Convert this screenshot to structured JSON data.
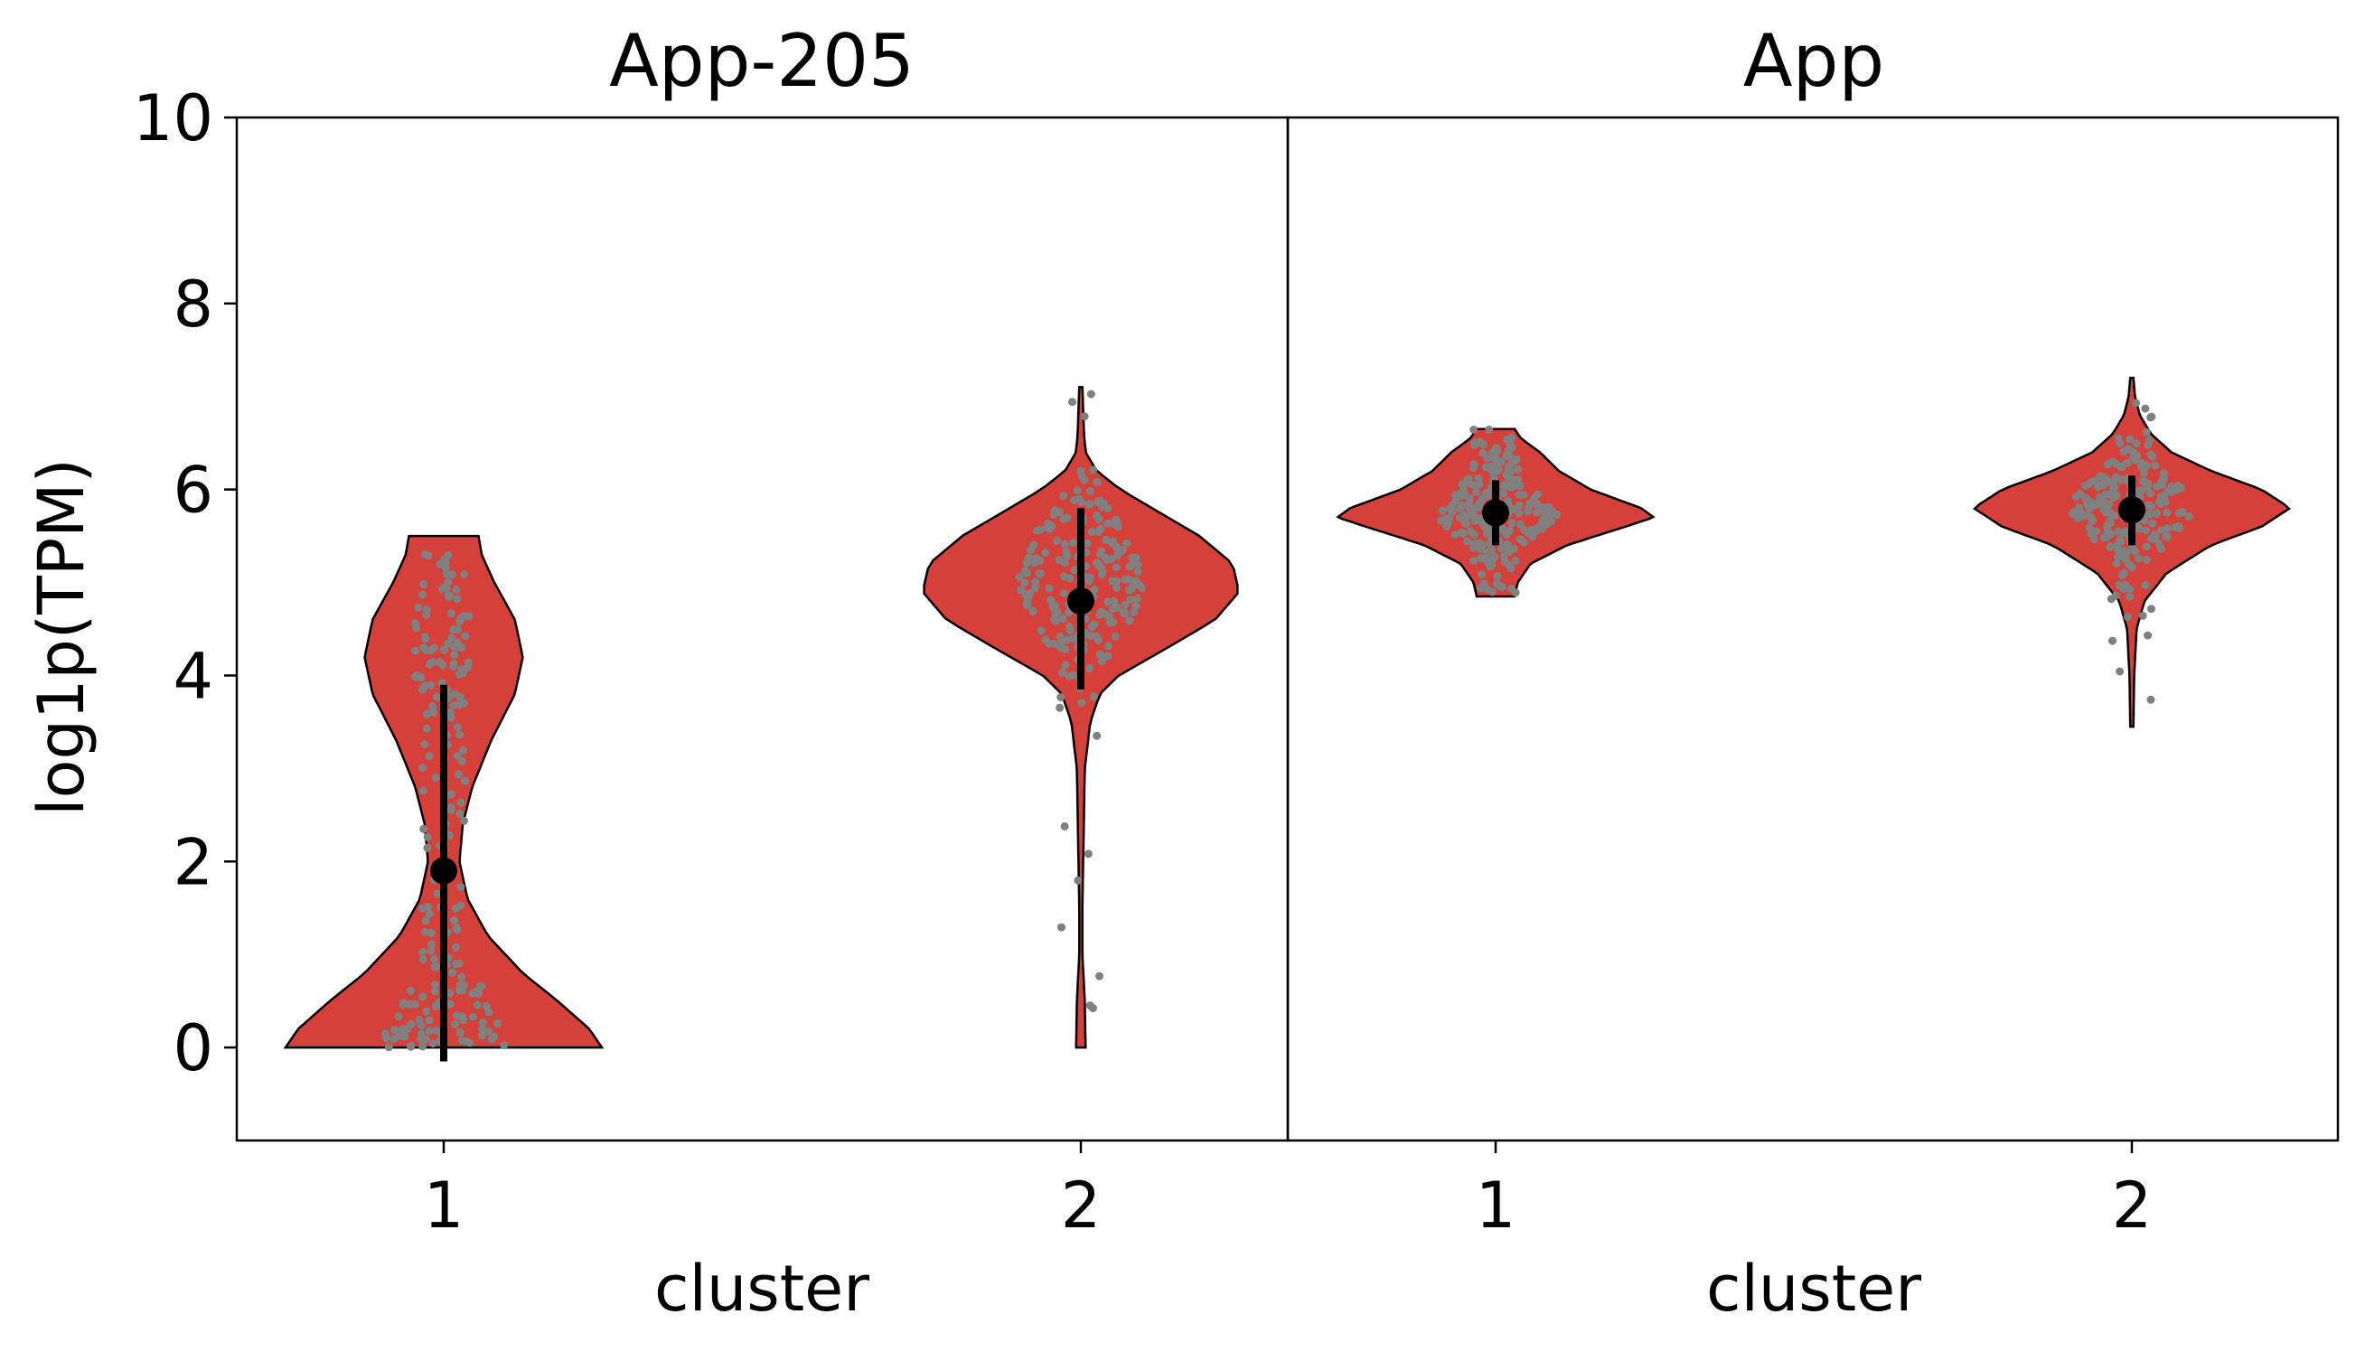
{
  "chart_data": {
    "type": "violin",
    "ylabel": "log1p(TPM)",
    "ylim": [
      -1,
      10
    ],
    "yticks": [
      0,
      2,
      4,
      6,
      8,
      10
    ],
    "grid": false,
    "colors": {
      "violin_fill": "#d6403a",
      "points": "#808080",
      "summary": "#000000",
      "axes": "#000000"
    },
    "panels": [
      {
        "title": "App-205",
        "xlabel": "cluster",
        "categories": [
          "1",
          "2"
        ],
        "groups": [
          {
            "category": "1",
            "min": 0.0,
            "max": 5.5,
            "median": 1.9,
            "whisker_low": -0.15,
            "whisker_high": 3.9,
            "density": [
              [
                0.0,
                1.0
              ],
              [
                0.2,
                0.92
              ],
              [
                0.5,
                0.72
              ],
              [
                0.8,
                0.5
              ],
              [
                1.2,
                0.28
              ],
              [
                1.6,
                0.15
              ],
              [
                2.0,
                0.1
              ],
              [
                2.4,
                0.12
              ],
              [
                2.8,
                0.18
              ],
              [
                3.3,
                0.3
              ],
              [
                3.8,
                0.45
              ],
              [
                4.2,
                0.5
              ],
              [
                4.6,
                0.45
              ],
              [
                5.0,
                0.32
              ],
              [
                5.3,
                0.24
              ],
              [
                5.5,
                0.22
              ]
            ]
          },
          {
            "category": "2",
            "min": 0.0,
            "max": 7.1,
            "median": 4.8,
            "whisker_low": 3.85,
            "whisker_high": 5.8,
            "density": [
              [
                0.0,
                0.03
              ],
              [
                0.5,
                0.025
              ],
              [
                1.0,
                0.01
              ],
              [
                1.5,
                0.01
              ],
              [
                2.0,
                0.015
              ],
              [
                2.5,
                0.02
              ],
              [
                3.0,
                0.025
              ],
              [
                3.5,
                0.06
              ],
              [
                3.8,
                0.12
              ],
              [
                4.0,
                0.24
              ],
              [
                4.3,
                0.55
              ],
              [
                4.6,
                0.85
              ],
              [
                4.9,
                1.0
              ],
              [
                5.2,
                0.96
              ],
              [
                5.5,
                0.75
              ],
              [
                5.8,
                0.45
              ],
              [
                6.0,
                0.25
              ],
              [
                6.2,
                0.1
              ],
              [
                6.4,
                0.03
              ],
              [
                6.6,
                0.02
              ],
              [
                7.1,
                0.01
              ]
            ]
          }
        ]
      },
      {
        "title": "App",
        "xlabel": "cluster",
        "categories": [
          "1",
          "2"
        ],
        "groups": [
          {
            "category": "1",
            "min": 4.85,
            "max": 6.65,
            "median": 5.75,
            "whisker_low": 5.4,
            "whisker_high": 6.1,
            "density": [
              [
                4.85,
                0.12
              ],
              [
                5.0,
                0.14
              ],
              [
                5.2,
                0.22
              ],
              [
                5.4,
                0.45
              ],
              [
                5.6,
                0.82
              ],
              [
                5.7,
                1.0
              ],
              [
                5.8,
                0.92
              ],
              [
                6.0,
                0.6
              ],
              [
                6.2,
                0.4
              ],
              [
                6.4,
                0.28
              ],
              [
                6.55,
                0.16
              ],
              [
                6.65,
                0.12
              ]
            ]
          },
          {
            "category": "2",
            "min": 3.45,
            "max": 7.2,
            "median": 5.78,
            "whisker_low": 5.4,
            "whisker_high": 6.15,
            "density": [
              [
                3.45,
                0.01
              ],
              [
                4.0,
                0.015
              ],
              [
                4.5,
                0.03
              ],
              [
                4.8,
                0.08
              ],
              [
                5.1,
                0.22
              ],
              [
                5.4,
                0.5
              ],
              [
                5.6,
                0.82
              ],
              [
                5.8,
                1.0
              ],
              [
                6.0,
                0.82
              ],
              [
                6.2,
                0.5
              ],
              [
                6.4,
                0.25
              ],
              [
                6.6,
                0.12
              ],
              [
                6.8,
                0.05
              ],
              [
                7.0,
                0.02
              ],
              [
                7.2,
                0.01
              ]
            ]
          }
        ]
      }
    ]
  }
}
